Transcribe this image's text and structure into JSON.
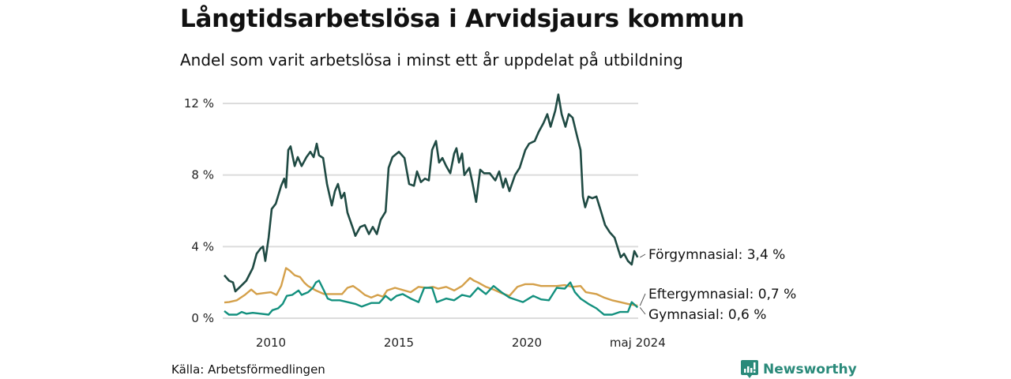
{
  "title": "Långtidsarbetslösa i Arvidsjaurs kommun",
  "subtitle": "Andel som varit arbetslösa i minst ett år uppdelat på utbildning",
  "source": "Källa: Arbetsförmedlingen",
  "logo": {
    "text": "Newsworthy",
    "color": "#2a8a7a",
    "icon": "chart-bubble-icon"
  },
  "chart_data": {
    "type": "line",
    "title": "Långtidsarbetslösa i Arvidsjaurs kommun",
    "xlabel": "",
    "ylabel": "",
    "xlim": [
      2008.18,
      2024.33
    ],
    "ylim": [
      0,
      12
    ],
    "grid": true,
    "x_ticks": [
      {
        "value": 2010,
        "label": "2010"
      },
      {
        "value": 2015,
        "label": "2015"
      },
      {
        "value": 2020,
        "label": "2020"
      },
      {
        "value": 2024.33,
        "label": "maj 2024"
      }
    ],
    "y_ticks": [
      {
        "value": 0,
        "label": "0 %"
      },
      {
        "value": 4,
        "label": "4 %"
      },
      {
        "value": 8,
        "label": "8 %"
      },
      {
        "value": 12,
        "label": "12 %"
      }
    ],
    "series": [
      {
        "name": "Förgymnasial",
        "label": "Förgymnasial: 3,4 %",
        "color": "#1f4a43",
        "points": [
          [
            2008.18,
            2.4
          ],
          [
            2008.36,
            2.1
          ],
          [
            2008.52,
            2.0
          ],
          [
            2008.61,
            1.5
          ],
          [
            2008.83,
            1.8
          ],
          [
            2009.04,
            2.1
          ],
          [
            2009.29,
            2.8
          ],
          [
            2009.44,
            3.6
          ],
          [
            2009.6,
            3.9
          ],
          [
            2009.69,
            4.0
          ],
          [
            2009.78,
            3.2
          ],
          [
            2009.91,
            4.5
          ],
          [
            2010.03,
            6.1
          ],
          [
            2010.19,
            6.4
          ],
          [
            2010.4,
            7.4
          ],
          [
            2010.52,
            7.8
          ],
          [
            2010.59,
            7.3
          ],
          [
            2010.68,
            9.4
          ],
          [
            2010.77,
            9.6
          ],
          [
            2010.93,
            8.5
          ],
          [
            2011.05,
            9.0
          ],
          [
            2011.2,
            8.5
          ],
          [
            2011.39,
            9.0
          ],
          [
            2011.54,
            9.3
          ],
          [
            2011.67,
            9.0
          ],
          [
            2011.79,
            9.75
          ],
          [
            2011.88,
            9.1
          ],
          [
            2012.04,
            8.95
          ],
          [
            2012.19,
            7.5
          ],
          [
            2012.38,
            6.3
          ],
          [
            2012.5,
            7.1
          ],
          [
            2012.62,
            7.5
          ],
          [
            2012.75,
            6.7
          ],
          [
            2012.87,
            7.0
          ],
          [
            2012.99,
            5.9
          ],
          [
            2013.21,
            5.0
          ],
          [
            2013.3,
            4.6
          ],
          [
            2013.49,
            5.1
          ],
          [
            2013.67,
            5.2
          ],
          [
            2013.83,
            4.7
          ],
          [
            2013.98,
            5.1
          ],
          [
            2014.14,
            4.7
          ],
          [
            2014.29,
            5.5
          ],
          [
            2014.48,
            5.95
          ],
          [
            2014.6,
            8.4
          ],
          [
            2014.75,
            9.0
          ],
          [
            2015.0,
            9.3
          ],
          [
            2015.22,
            8.95
          ],
          [
            2015.4,
            7.5
          ],
          [
            2015.59,
            7.4
          ],
          [
            2015.71,
            8.2
          ],
          [
            2015.86,
            7.6
          ],
          [
            2016.02,
            7.8
          ],
          [
            2016.17,
            7.7
          ],
          [
            2016.3,
            9.4
          ],
          [
            2016.45,
            9.9
          ],
          [
            2016.57,
            8.7
          ],
          [
            2016.7,
            8.95
          ],
          [
            2016.85,
            8.5
          ],
          [
            2017.01,
            8.1
          ],
          [
            2017.16,
            9.2
          ],
          [
            2017.25,
            9.5
          ],
          [
            2017.35,
            8.7
          ],
          [
            2017.47,
            9.2
          ],
          [
            2017.56,
            8.0
          ],
          [
            2017.75,
            8.4
          ],
          [
            2017.87,
            7.6
          ],
          [
            2018.02,
            6.5
          ],
          [
            2018.18,
            8.3
          ],
          [
            2018.33,
            8.1
          ],
          [
            2018.55,
            8.1
          ],
          [
            2018.77,
            7.7
          ],
          [
            2018.92,
            8.2
          ],
          [
            2019.07,
            7.3
          ],
          [
            2019.17,
            7.8
          ],
          [
            2019.32,
            7.1
          ],
          [
            2019.54,
            8.0
          ],
          [
            2019.72,
            8.4
          ],
          [
            2019.94,
            9.4
          ],
          [
            2020.09,
            9.75
          ],
          [
            2020.31,
            9.9
          ],
          [
            2020.46,
            10.4
          ],
          [
            2020.65,
            10.9
          ],
          [
            2020.8,
            11.4
          ],
          [
            2020.93,
            10.7
          ],
          [
            2021.11,
            11.6
          ],
          [
            2021.23,
            12.5
          ],
          [
            2021.36,
            11.4
          ],
          [
            2021.51,
            10.7
          ],
          [
            2021.64,
            11.4
          ],
          [
            2021.79,
            11.2
          ],
          [
            2021.94,
            10.3
          ],
          [
            2022.1,
            9.4
          ],
          [
            2022.19,
            6.8
          ],
          [
            2022.28,
            6.2
          ],
          [
            2022.41,
            6.8
          ],
          [
            2022.56,
            6.7
          ],
          [
            2022.72,
            6.8
          ],
          [
            2022.87,
            6.1
          ],
          [
            2023.06,
            5.2
          ],
          [
            2023.24,
            4.8
          ],
          [
            2023.43,
            4.5
          ],
          [
            2023.67,
            3.4
          ],
          [
            2023.8,
            3.6
          ],
          [
            2023.95,
            3.2
          ],
          [
            2024.1,
            3.0
          ],
          [
            2024.2,
            3.75
          ],
          [
            2024.33,
            3.4
          ]
        ]
      },
      {
        "name": "Eftergymnasial",
        "label": "Eftergymnasial: 0,7 %",
        "color": "#d4a04a",
        "points": [
          [
            2008.18,
            0.88
          ],
          [
            2008.36,
            0.9
          ],
          [
            2008.67,
            1.0
          ],
          [
            2008.98,
            1.3
          ],
          [
            2009.23,
            1.6
          ],
          [
            2009.44,
            1.35
          ],
          [
            2009.69,
            1.4
          ],
          [
            2010.0,
            1.45
          ],
          [
            2010.22,
            1.3
          ],
          [
            2010.4,
            1.8
          ],
          [
            2010.59,
            2.8
          ],
          [
            2010.74,
            2.65
          ],
          [
            2010.93,
            2.4
          ],
          [
            2011.14,
            2.3
          ],
          [
            2011.3,
            2.0
          ],
          [
            2011.45,
            1.8
          ],
          [
            2011.76,
            1.55
          ],
          [
            2012.07,
            1.35
          ],
          [
            2012.38,
            1.35
          ],
          [
            2012.78,
            1.35
          ],
          [
            2012.99,
            1.7
          ],
          [
            2013.21,
            1.8
          ],
          [
            2013.46,
            1.55
          ],
          [
            2013.67,
            1.3
          ],
          [
            2013.92,
            1.15
          ],
          [
            2014.17,
            1.3
          ],
          [
            2014.38,
            1.2
          ],
          [
            2014.54,
            1.55
          ],
          [
            2014.85,
            1.7
          ],
          [
            2015.22,
            1.55
          ],
          [
            2015.46,
            1.45
          ],
          [
            2015.77,
            1.75
          ],
          [
            2016.08,
            1.7
          ],
          [
            2016.33,
            1.75
          ],
          [
            2016.54,
            1.65
          ],
          [
            2016.85,
            1.75
          ],
          [
            2017.16,
            1.55
          ],
          [
            2017.47,
            1.8
          ],
          [
            2017.78,
            2.25
          ],
          [
            2017.93,
            2.1
          ],
          [
            2018.09,
            2.0
          ],
          [
            2018.4,
            1.75
          ],
          [
            2018.7,
            1.6
          ],
          [
            2019.01,
            1.4
          ],
          [
            2019.32,
            1.25
          ],
          [
            2019.63,
            1.75
          ],
          [
            2019.94,
            1.9
          ],
          [
            2020.25,
            1.9
          ],
          [
            2020.56,
            1.8
          ],
          [
            2020.86,
            1.8
          ],
          [
            2021.17,
            1.8
          ],
          [
            2021.48,
            1.85
          ],
          [
            2021.79,
            1.75
          ],
          [
            2022.1,
            1.8
          ],
          [
            2022.31,
            1.45
          ],
          [
            2022.72,
            1.35
          ],
          [
            2023.02,
            1.15
          ],
          [
            2023.33,
            1.0
          ],
          [
            2023.64,
            0.9
          ],
          [
            2023.95,
            0.8
          ],
          [
            2024.33,
            0.7
          ]
        ]
      },
      {
        "name": "Gymnasial",
        "label": "Gymnasial: 0,6 %",
        "color": "#13907e",
        "points": [
          [
            2008.18,
            0.4
          ],
          [
            2008.36,
            0.2
          ],
          [
            2008.67,
            0.2
          ],
          [
            2008.86,
            0.35
          ],
          [
            2009.04,
            0.25
          ],
          [
            2009.29,
            0.3
          ],
          [
            2009.6,
            0.25
          ],
          [
            2009.91,
            0.2
          ],
          [
            2010.06,
            0.45
          ],
          [
            2010.28,
            0.55
          ],
          [
            2010.46,
            0.8
          ],
          [
            2010.62,
            1.25
          ],
          [
            2010.83,
            1.3
          ],
          [
            2011.08,
            1.55
          ],
          [
            2011.2,
            1.3
          ],
          [
            2011.45,
            1.45
          ],
          [
            2011.64,
            1.7
          ],
          [
            2011.76,
            2.0
          ],
          [
            2011.88,
            2.1
          ],
          [
            2012.07,
            1.55
          ],
          [
            2012.22,
            1.1
          ],
          [
            2012.38,
            1.0
          ],
          [
            2012.69,
            1.0
          ],
          [
            2012.99,
            0.9
          ],
          [
            2013.3,
            0.8
          ],
          [
            2013.55,
            0.65
          ],
          [
            2013.92,
            0.85
          ],
          [
            2014.23,
            0.85
          ],
          [
            2014.48,
            1.25
          ],
          [
            2014.69,
            1.0
          ],
          [
            2014.91,
            1.25
          ],
          [
            2015.15,
            1.35
          ],
          [
            2015.46,
            1.1
          ],
          [
            2015.77,
            0.9
          ],
          [
            2015.99,
            1.7
          ],
          [
            2016.3,
            1.7
          ],
          [
            2016.48,
            0.9
          ],
          [
            2016.85,
            1.1
          ],
          [
            2017.16,
            1.0
          ],
          [
            2017.47,
            1.3
          ],
          [
            2017.78,
            1.2
          ],
          [
            2018.09,
            1.7
          ],
          [
            2018.4,
            1.35
          ],
          [
            2018.7,
            1.8
          ],
          [
            2019.01,
            1.45
          ],
          [
            2019.32,
            1.15
          ],
          [
            2019.63,
            1.0
          ],
          [
            2019.85,
            0.9
          ],
          [
            2020.25,
            1.25
          ],
          [
            2020.56,
            1.05
          ],
          [
            2020.86,
            1.0
          ],
          [
            2021.17,
            1.7
          ],
          [
            2021.48,
            1.65
          ],
          [
            2021.7,
            2.0
          ],
          [
            2021.88,
            1.45
          ],
          [
            2022.1,
            1.1
          ],
          [
            2022.41,
            0.8
          ],
          [
            2022.72,
            0.55
          ],
          [
            2023.02,
            0.2
          ],
          [
            2023.33,
            0.2
          ],
          [
            2023.64,
            0.35
          ],
          [
            2023.95,
            0.35
          ],
          [
            2024.1,
            0.9
          ],
          [
            2024.33,
            0.6
          ]
        ]
      }
    ]
  }
}
